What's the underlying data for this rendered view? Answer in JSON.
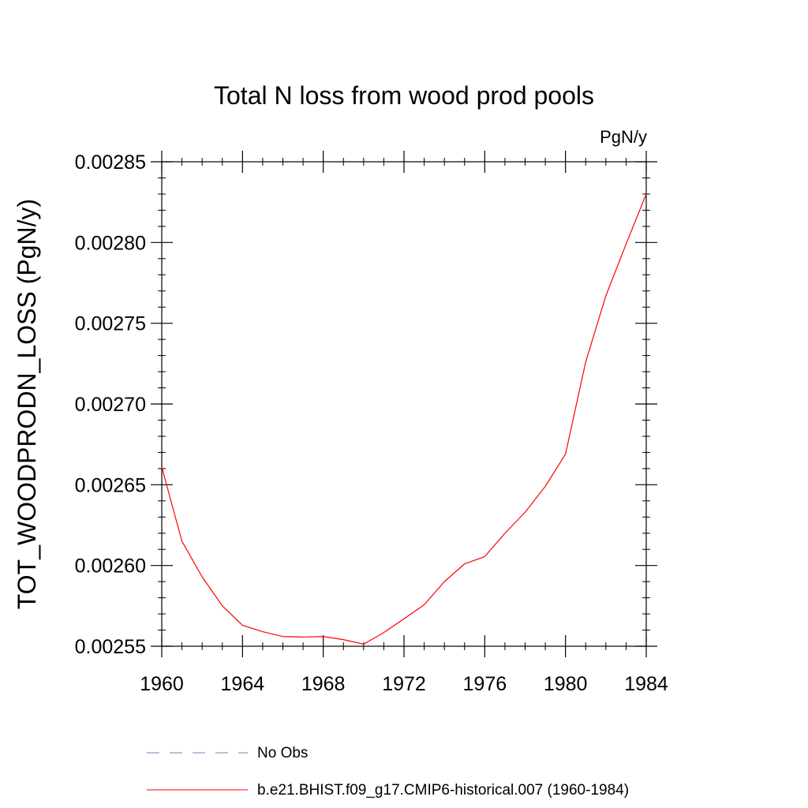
{
  "chart_data": {
    "type": "line",
    "title": "Total N loss from wood prod pools",
    "units_label": "PgN/y",
    "ylabel": "TOT_WOODPRODN_LOSS  (PgN/y)",
    "xlabel": "",
    "xlim": [
      1960,
      1984
    ],
    "ylim": [
      0.00255,
      0.00285
    ],
    "x_ticks": [
      1960,
      1964,
      1968,
      1972,
      1976,
      1980,
      1984
    ],
    "x_tick_labels": [
      "1960",
      "1964",
      "1968",
      "1972",
      "1976",
      "1980",
      "1984"
    ],
    "y_ticks": [
      0.00255,
      0.0026,
      0.00265,
      0.0027,
      0.00275,
      0.0028,
      0.00285
    ],
    "y_tick_labels": [
      "0.00255",
      "0.00260",
      "0.00265",
      "0.00270",
      "0.00275",
      "0.00280",
      "0.00285"
    ],
    "grid": false,
    "legend_position": "bottom",
    "legend": [
      {
        "label": "No Obs",
        "color": "#7b7bbd",
        "dash": "dashed"
      },
      {
        "label": "b.e21.BHIST.f09_g17.CMIP6-historical.007 (1960-1984)",
        "color": "#ff0000",
        "dash": "solid"
      }
    ],
    "series": [
      {
        "name": "b.e21.BHIST.f09_g17.CMIP6-historical.007 (1960-1984)",
        "color": "#ff0000",
        "x": [
          1960,
          1961,
          1962,
          1963,
          1964,
          1965,
          1966,
          1967,
          1968,
          1969,
          1970,
          1971,
          1972,
          1973,
          1974,
          1975,
          1976,
          1977,
          1978,
          1979,
          1980,
          1981,
          1982,
          1983,
          1984
        ],
        "values": [
          0.002661,
          0.002615,
          0.002593,
          0.002575,
          0.002563,
          0.002559,
          0.002556,
          0.0025557,
          0.002556,
          0.0025541,
          0.0025513,
          0.0025585,
          0.002567,
          0.0025757,
          0.00259,
          0.002601,
          0.0026055,
          0.00262,
          0.002633,
          0.002649,
          0.002669,
          0.002726,
          0.002767,
          0.002799,
          0.00283
        ]
      }
    ]
  }
}
